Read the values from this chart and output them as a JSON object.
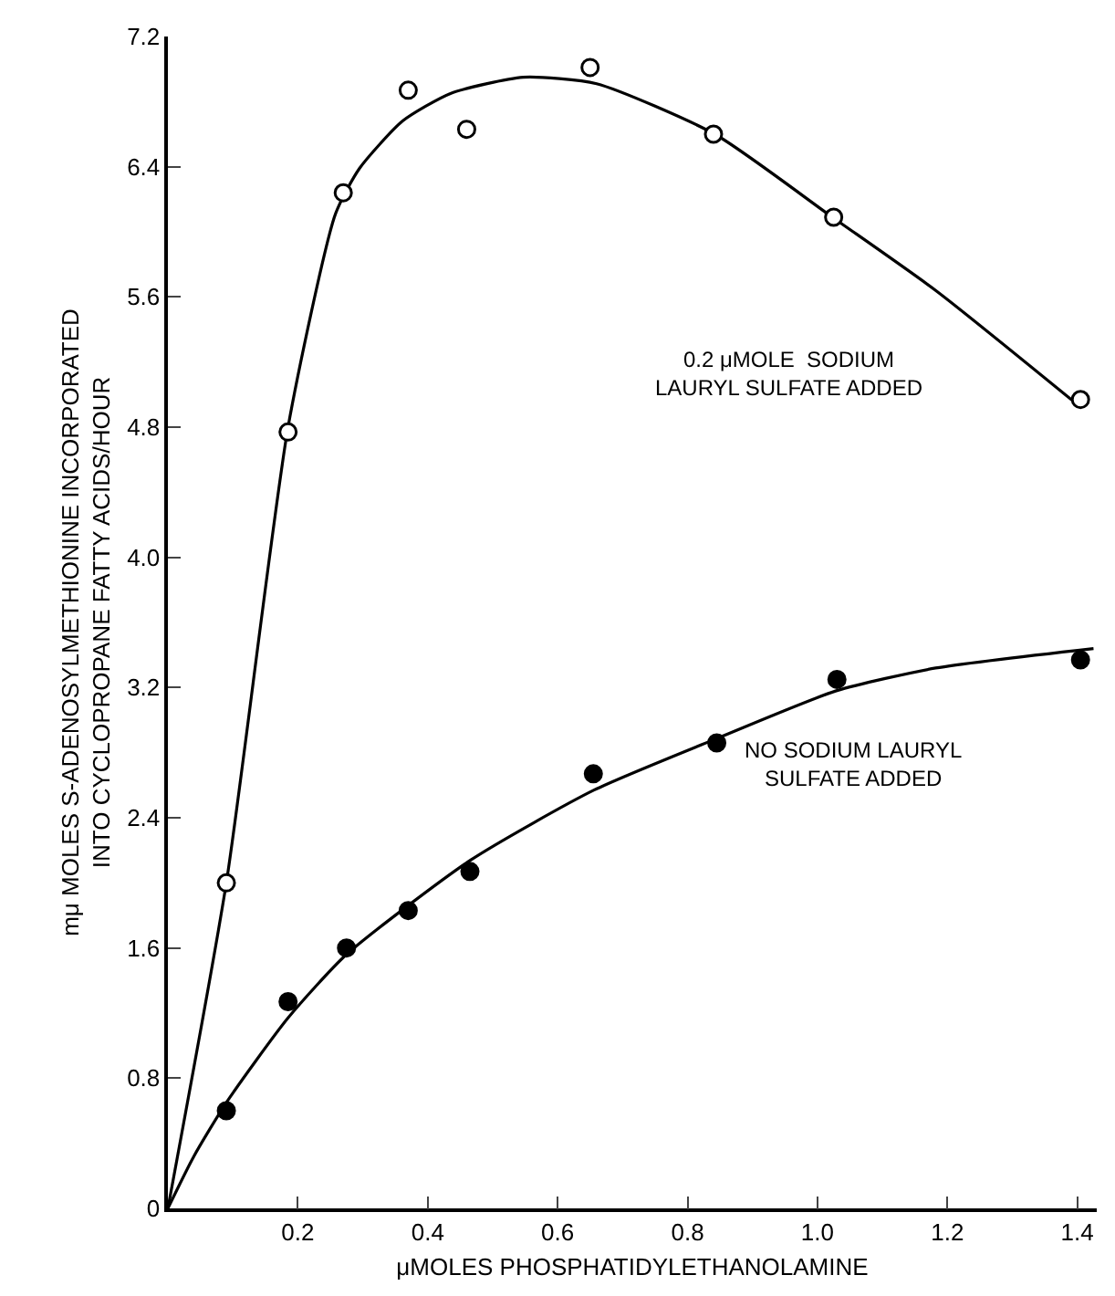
{
  "chart_data": {
    "type": "scatter",
    "xlabel": "μMOLES PHOSPHATIDYLETHANOLAMINE",
    "ylabel": "mμ MOLES S-ADENOSYLMETHIONINE INCORPORATED\nINTO CYCLOPROPANE FATTY ACIDS/HOUR",
    "xlim": [
      0,
      1.43
    ],
    "ylim": [
      0,
      7.2
    ],
    "xticks": [
      0.2,
      0.4,
      0.6,
      0.8,
      {
        "value": 1,
        "label": "1.0"
      },
      1.2,
      1.4
    ],
    "yticks": [
      0,
      0.8,
      1.6,
      2.4,
      3.2,
      {
        "value": 4,
        "label": "4.0"
      },
      4.8,
      5.6,
      6.4,
      7.2
    ],
    "grid": false,
    "series": [
      {
        "marker": "circle",
        "color": "#ffffff",
        "x": [
          0.09,
          0.185,
          0.27,
          0.37,
          0.46,
          0.65,
          0.84,
          1.025,
          1.405
        ],
        "values": [
          2.0,
          4.77,
          6.24,
          6.87,
          6.63,
          7.01,
          6.6,
          6.09,
          4.97
        ]
      },
      {
        "name": "0.2 μMOLE  SODIUM LAURYL SULFATE ADDED",
        "type": "line",
        "marker": "none",
        "line_style": "solid",
        "color": "#000000",
        "x": [
          0,
          0.09,
          0.185,
          0.258,
          0.295,
          0.361,
          0.435,
          0.547,
          0.66,
          0.842,
          1.023,
          1.182,
          1.406
        ],
        "values": [
          0,
          2.0,
          4.8,
          6.11,
          6.39,
          6.68,
          6.85,
          6.95,
          6.91,
          6.6,
          6.09,
          5.64,
          4.92
        ]
      },
      {
        "name": "NO SODIUM LAURYL SULFATE ADDED",
        "marker": "circle",
        "color": "#000000",
        "x": [
          0.09,
          0.185,
          0.275,
          0.37,
          0.465,
          0.655,
          0.845,
          1.03,
          1.405
        ],
        "values": [
          0.6,
          1.27,
          1.6,
          1.83,
          2.07,
          2.67,
          2.86,
          3.25,
          3.37
        ]
      },
      {
        "type": "line",
        "marker": "none",
        "line_style": "solid",
        "color": "#000000",
        "x": [
          0,
          0.04,
          0.09,
          0.185,
          0.275,
          0.466,
          0.656,
          0.847,
          1.029,
          1.182,
          1.425
        ],
        "values": [
          0,
          0.32,
          0.65,
          1.17,
          1.56,
          2.14,
          2.57,
          2.89,
          3.18,
          3.32,
          3.44
        ]
      }
    ]
  }
}
